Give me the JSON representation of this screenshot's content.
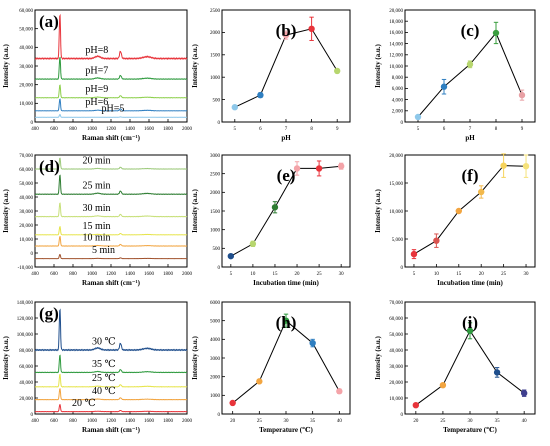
{
  "chart_data": [
    {
      "panel": "(a)",
      "type": "line",
      "xlabel": "Raman shift (cm⁻¹)",
      "ylabel": "Intensity (a.u.)",
      "xlim": [
        400,
        2000
      ],
      "ylim": [
        0,
        60000
      ],
      "xticks": [
        400,
        600,
        800,
        1000,
        1200,
        1400,
        1600,
        1800,
        2000
      ],
      "yticks": [
        0,
        10000,
        20000,
        30000,
        40000,
        50000,
        60000
      ],
      "ytick_labels": [
        "0",
        "10,000",
        "20,000",
        "30,000",
        "40,000",
        "50,000",
        "60,000"
      ],
      "series": [
        {
          "name": "pH=8",
          "color": "#e8343b",
          "baseline": 34000,
          "peak": 24000,
          "label_x": 930
        },
        {
          "name": "pH=7",
          "color": "#2e9a3e",
          "baseline": 23000,
          "peak": 12000,
          "label_x": 930
        },
        {
          "name": "pH=9",
          "color": "#8ccf4a",
          "baseline": 13000,
          "peak": 7000,
          "label_x": 930
        },
        {
          "name": "pH=6",
          "color": "#2f7fc1",
          "baseline": 6000,
          "peak": 6500,
          "label_x": 930
        },
        {
          "name": "pH=5",
          "color": "#8ec8ea",
          "baseline": 2500,
          "peak": 1500,
          "label_x": 1100
        }
      ]
    },
    {
      "panel": "(b)",
      "type": "line",
      "xlabel": "pH",
      "ylabel": "Intensity (a.u.)",
      "xlim": [
        4.5,
        9.5
      ],
      "ylim": [
        0,
        2500
      ],
      "xticks": [
        5,
        6,
        7,
        8,
        9
      ],
      "yticks": [
        0,
        500,
        1000,
        1500,
        2000,
        2500
      ],
      "ytick_labels": [
        "0",
        "500",
        "1000",
        "1500",
        "2000",
        "2500"
      ],
      "x": [
        5,
        6,
        7,
        8,
        9
      ],
      "y": [
        330,
        600,
        1940,
        2080,
        1140
      ],
      "err": [
        40,
        50,
        90,
        260,
        40
      ],
      "colors": [
        "#8ec8ea",
        "#2f7fc1",
        "#f4a3a8",
        "#e8343b",
        "#b7d66e"
      ]
    },
    {
      "panel": "(c)",
      "type": "line",
      "xlabel": "pH",
      "ylabel": "Intensity (a.u.)",
      "xlim": [
        4.5,
        9.5
      ],
      "ylim": [
        0,
        20000
      ],
      "xticks": [
        5,
        6,
        7,
        8,
        9
      ],
      "yticks": [
        0,
        2000,
        4000,
        6000,
        8000,
        10000,
        12000,
        14000,
        16000,
        18000,
        20000
      ],
      "ytick_labels": [
        "0",
        "2,000",
        "4,000",
        "6,000",
        "8,000",
        "10,000",
        "12,000",
        "14,000",
        "16,000",
        "18,000",
        "20,000"
      ],
      "x": [
        5,
        6,
        7,
        8,
        9
      ],
      "y": [
        900,
        6300,
        10300,
        15900,
        4800
      ],
      "err": [
        150,
        1300,
        600,
        1900,
        900
      ],
      "colors": [
        "#8ec8ea",
        "#2f7fc1",
        "#b7d66e",
        "#3a9e3f",
        "#e8a0a4"
      ]
    },
    {
      "panel": "(d)",
      "type": "line",
      "xlabel": "Raman shift (cm⁻¹)",
      "ylabel": "Intensity (a.u.)",
      "xlim": [
        400,
        2000
      ],
      "ylim": [
        -10000,
        70000
      ],
      "xticks": [
        400,
        600,
        800,
        1000,
        1200,
        1400,
        1600,
        1800,
        2000
      ],
      "yticks": [
        -10000,
        0,
        10000,
        20000,
        30000,
        40000,
        50000,
        60000,
        70000
      ],
      "ytick_labels": [
        "-10,000",
        "0",
        "10,000",
        "20,000",
        "30,000",
        "40,000",
        "50,000",
        "60,000",
        "70,000"
      ],
      "series": [
        {
          "name": "20 min",
          "color": "#9cc97a",
          "baseline": 60000,
          "peak": 8000,
          "label_x": 900
        },
        {
          "name": "25 min",
          "color": "#2e7d32",
          "baseline": 42000,
          "peak": 14000,
          "label_x": 900
        },
        {
          "name": "30 min",
          "color": "#c8e07a",
          "baseline": 26000,
          "peak": 10000,
          "label_x": 900
        },
        {
          "name": "15 min",
          "color": "#e6e44a",
          "baseline": 13000,
          "peak": 6000,
          "label_x": 900
        },
        {
          "name": "10 min",
          "color": "#f2a541",
          "baseline": 5000,
          "peak": 7000,
          "label_x": 900
        },
        {
          "name": "5 min",
          "color": "#a0522d",
          "baseline": -4000,
          "peak": 3000,
          "label_x": 1000
        }
      ]
    },
    {
      "panel": "(e)",
      "type": "line",
      "xlabel": "Incubation time (min)",
      "ylabel": "Intensity (a.u.)",
      "xlim": [
        3,
        32
      ],
      "ylim": [
        0,
        3000
      ],
      "xticks": [
        5,
        10,
        15,
        20,
        25,
        30
      ],
      "yticks": [
        0,
        500,
        1000,
        1500,
        2000,
        2500,
        3000
      ],
      "ytick_labels": [
        "0",
        "500",
        "1000",
        "1500",
        "2000",
        "2500",
        "3000"
      ],
      "x": [
        5,
        10,
        15,
        20,
        25,
        30
      ],
      "y": [
        290,
        620,
        1600,
        2640,
        2640,
        2700
      ],
      "err": [
        30,
        70,
        150,
        180,
        200,
        80
      ],
      "colors": [
        "#1f4e8c",
        "#b7d66e",
        "#2e7d32",
        "#f4a3a8",
        "#e8343b",
        "#f4a3a8"
      ]
    },
    {
      "panel": "(f)",
      "type": "line",
      "xlabel": "Incubation time (min)",
      "ylabel": "Intensity (a.u.)",
      "xlim": [
        3,
        32
      ],
      "ylim": [
        0,
        20000
      ],
      "xticks": [
        5,
        10,
        15,
        20,
        25,
        30
      ],
      "yticks": [
        0,
        5000,
        10000,
        15000,
        20000
      ],
      "ytick_labels": [
        "0",
        "5,000",
        "10,000",
        "15,000",
        "20,000"
      ],
      "x": [
        5,
        10,
        15,
        20,
        25,
        30
      ],
      "y": [
        2300,
        4700,
        10000,
        13400,
        18100,
        18000
      ],
      "err": [
        800,
        1200,
        300,
        1100,
        2100,
        2000
      ],
      "colors": [
        "#e8343b",
        "#d9534f",
        "#f2a541",
        "#f2b84b",
        "#f6d35b",
        "#f6e27a"
      ]
    },
    {
      "panel": "(g)",
      "type": "line",
      "xlabel": "Raman shift (cm⁻¹)",
      "ylabel": "Intensity (a.u.)",
      "xlim": [
        400,
        2000
      ],
      "ylim": [
        0,
        140000
      ],
      "xticks": [
        400,
        600,
        800,
        1000,
        1200,
        1400,
        1600,
        1800,
        2000
      ],
      "yticks": [
        0,
        20000,
        40000,
        60000,
        80000,
        100000,
        120000,
        140000
      ],
      "ytick_labels": [
        "0",
        "20,000",
        "40,000",
        "60,000",
        "80,000",
        "100,000",
        "120,000",
        "140,000"
      ],
      "series": [
        {
          "name": "30 ℃",
          "color": "#1f4e8c",
          "baseline": 80000,
          "peak": 52000,
          "label_x": 1000
        },
        {
          "name": "35 ℃",
          "color": "#2e9a3e",
          "baseline": 52000,
          "peak": 22000,
          "label_x": 1000
        },
        {
          "name": "25 ℃",
          "color": "#e6e44a",
          "baseline": 34000,
          "peak": 16000,
          "label_x": 1000
        },
        {
          "name": "40 ℃",
          "color": "#f2a541",
          "baseline": 18000,
          "peak": 14000,
          "label_x": 1000
        },
        {
          "name": "20 ℃",
          "color": "#e8343b",
          "baseline": 3000,
          "peak": 9000,
          "label_x": 790
        }
      ]
    },
    {
      "panel": "(h)",
      "type": "line",
      "xlabel": "Temperature (℃)",
      "ylabel": "Intensity (a.u.)",
      "xlim": [
        18,
        42
      ],
      "ylim": [
        0,
        6000
      ],
      "xticks": [
        20,
        25,
        30,
        35,
        40
      ],
      "yticks": [
        0,
        1000,
        2000,
        3000,
        4000,
        5000,
        6000
      ],
      "ytick_labels": [
        "0",
        "1000",
        "2000",
        "3000",
        "4000",
        "5000",
        "6000"
      ],
      "x": [
        20,
        25,
        30,
        35,
        40
      ],
      "y": [
        590,
        1750,
        5000,
        3800,
        1220
      ],
      "err": [
        40,
        80,
        350,
        200,
        120
      ],
      "colors": [
        "#e8343b",
        "#f2a541",
        "#2e9a3e",
        "#2f7fc1",
        "#f4a3a8"
      ]
    },
    {
      "panel": "(i)",
      "type": "line",
      "xlabel": "Temperature (℃)",
      "ylabel": "Intensity (a.u.)",
      "xlim": [
        18,
        42
      ],
      "ylim": [
        0,
        70000
      ],
      "xticks": [
        20,
        25,
        30,
        35,
        40
      ],
      "yticks": [
        0,
        10000,
        20000,
        30000,
        40000,
        50000,
        60000,
        70000
      ],
      "ytick_labels": [
        "0",
        "10,000",
        "20,000",
        "30,000",
        "40,000",
        "50,000",
        "60,000",
        "70,000"
      ],
      "x": [
        20,
        25,
        30,
        35,
        40
      ],
      "y": [
        5500,
        18000,
        52000,
        26000,
        13000
      ],
      "err": [
        400,
        1000,
        5000,
        3000,
        2000
      ],
      "colors": [
        "#e8343b",
        "#f2a541",
        "#2e9a3e",
        "#1f4e8c",
        "#3f3f8f"
      ]
    }
  ]
}
